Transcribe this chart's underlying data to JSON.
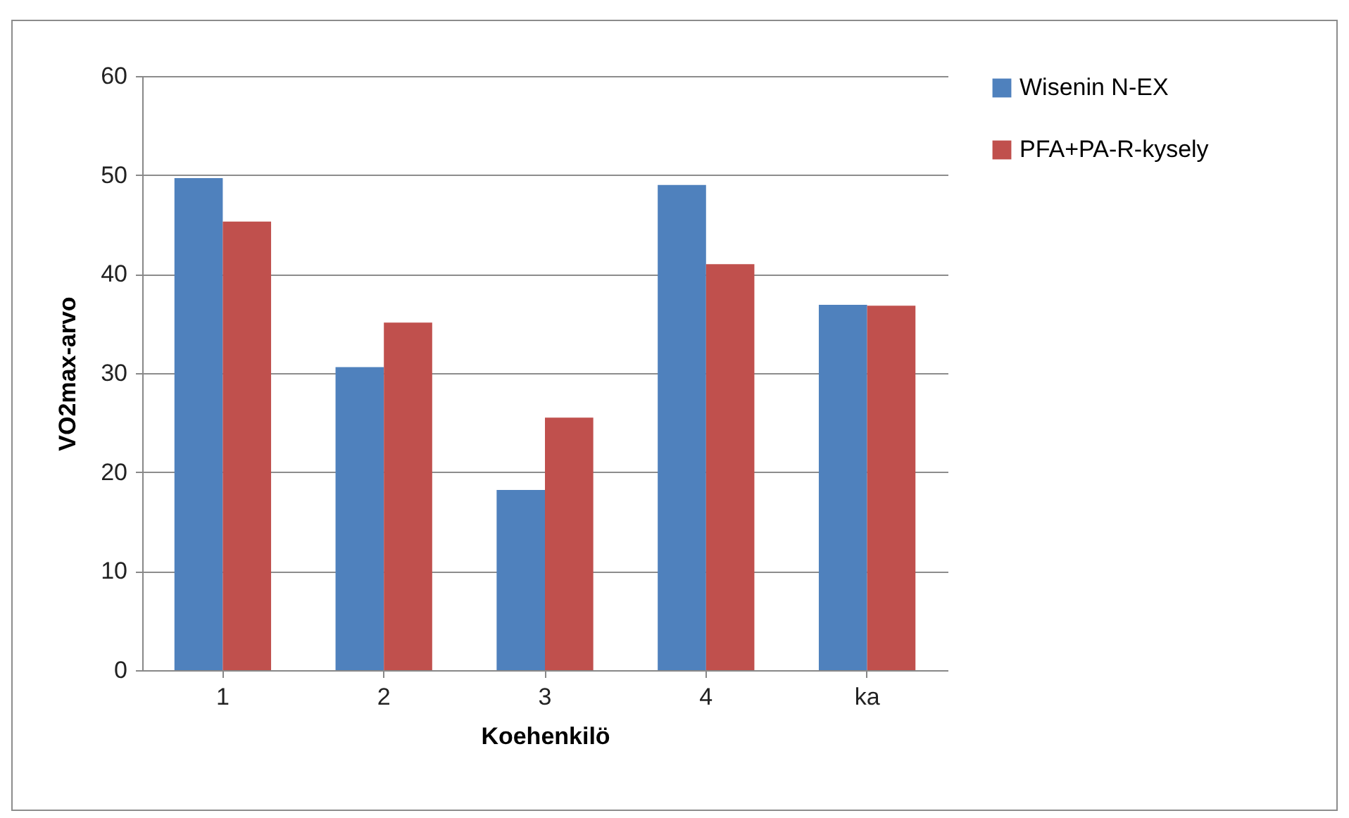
{
  "chart_data": {
    "type": "bar",
    "xlabel": "Koehenkilö",
    "ylabel": "VO2max-arvo",
    "categories": [
      "1",
      "2",
      "3",
      "4",
      "ka"
    ],
    "series": [
      {
        "name": "Wisenin N-EX",
        "color": "#4f81bd",
        "values": [
          49.7,
          30.6,
          18.2,
          49.0,
          36.9
        ]
      },
      {
        "name": "PFA+PA-R-kysely",
        "color": "#c0504d",
        "values": [
          45.3,
          35.1,
          25.5,
          41.0,
          36.8
        ]
      }
    ],
    "ylim": [
      0,
      60
    ],
    "yticks": [
      0,
      10,
      20,
      30,
      40,
      50,
      60
    ],
    "grid": "y",
    "legend": "right"
  }
}
